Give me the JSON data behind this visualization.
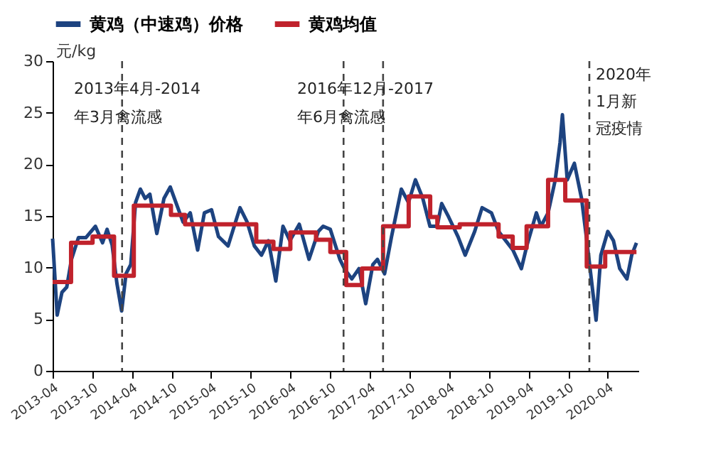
{
  "chart_data": {
    "type": "line",
    "ylabel": "元/kg",
    "xlim": [
      "2013-04-01",
      "2020-08-20"
    ],
    "xticks": [
      "2013-04",
      "2013-10",
      "2014-04",
      "2014-10",
      "2015-04",
      "2015-10",
      "2016-04",
      "2016-10",
      "2017-04",
      "2017-10",
      "2018-04",
      "2018-10",
      "2019-04",
      "2019-10",
      "2020-04"
    ],
    "ylim": [
      0,
      30
    ],
    "yticks": [
      0,
      5,
      10,
      15,
      20,
      25,
      30
    ],
    "grid": false,
    "legend": "top",
    "marker": "none",
    "line_style": "solid",
    "series": [
      {
        "name": "黄鸡（中速鸡）价格",
        "color": "#1d4380",
        "x": [
          "2013-04-01",
          "2013-04-22",
          "2013-05-14",
          "2013-06-05",
          "2013-06-27",
          "2013-07-29",
          "2013-09-01",
          "2013-10-15",
          "2013-11-17",
          "2013-12-08",
          "2013-12-31",
          "2014-01-22",
          "2014-02-13",
          "2014-03-05",
          "2014-03-27",
          "2014-04-18",
          "2014-05-10",
          "2014-06-01",
          "2014-06-23",
          "2014-07-25",
          "2014-08-27",
          "2014-09-25",
          "2014-10-21",
          "2014-11-23",
          "2014-12-26",
          "2015-01-29",
          "2015-03-01",
          "2015-04-03",
          "2015-05-05",
          "2015-06-18",
          "2015-08-12",
          "2015-09-14",
          "2015-10-17",
          "2015-11-19",
          "2015-12-21",
          "2016-01-24",
          "2016-02-26",
          "2016-03-29",
          "2016-05-11",
          "2016-06-25",
          "2016-08-07",
          "2016-08-29",
          "2016-10-01",
          "2016-11-14",
          "2016-12-05",
          "2017-01-08",
          "2017-02-10",
          "2017-03-13",
          "2017-04-15",
          "2017-05-06",
          "2017-06-08",
          "2017-07-10",
          "2017-08-24",
          "2017-09-26",
          "2017-10-28",
          "2017-12-01",
          "2018-01-03",
          "2018-02-05",
          "2018-02-26",
          "2018-03-30",
          "2018-05-12",
          "2018-06-14",
          "2018-07-28",
          "2018-08-31",
          "2018-10-13",
          "2018-11-15",
          "2018-12-18",
          "2019-01-20",
          "2019-02-28",
          "2019-03-25",
          "2019-05-08",
          "2019-05-29",
          "2019-07-01",
          "2019-08-03",
          "2019-08-25",
          "2019-09-05",
          "2019-09-27",
          "2019-10-30",
          "2019-12-02",
          "2019-12-24",
          "2020-01-16",
          "2020-02-07",
          "2020-02-29",
          "2020-04-01",
          "2020-04-27",
          "2020-05-26",
          "2020-06-28",
          "2020-07-20",
          "2020-08-11"
        ],
        "values": [
          12.8,
          5.4,
          7.6,
          8.1,
          10.8,
          12.9,
          12.9,
          14.0,
          12.4,
          13.7,
          12.2,
          8.5,
          5.8,
          9.4,
          10.3,
          16.3,
          17.6,
          16.7,
          17.1,
          13.3,
          16.7,
          17.8,
          16.3,
          14.4,
          15.3,
          11.7,
          15.3,
          15.6,
          13.0,
          12.1,
          15.8,
          14.4,
          12.1,
          11.2,
          12.6,
          8.7,
          14.0,
          12.6,
          14.2,
          10.8,
          13.5,
          14.0,
          13.7,
          10.8,
          9.9,
          8.9,
          9.9,
          6.5,
          10.3,
          10.8,
          9.4,
          13.0,
          17.6,
          16.3,
          18.5,
          16.7,
          14.0,
          14.0,
          16.2,
          14.9,
          13.0,
          11.2,
          13.5,
          15.8,
          15.3,
          13.5,
          12.6,
          11.7,
          9.9,
          12.1,
          15.3,
          14.0,
          15.3,
          18.5,
          22.1,
          24.8,
          18.5,
          20.1,
          16.7,
          13.0,
          8.9,
          4.9,
          11.2,
          13.5,
          12.6,
          9.9,
          8.9,
          11.2,
          12.4
        ]
      },
      {
        "name": "黄鸡均值",
        "color": "#c0222c",
        "type": "step",
        "x": [
          "2013-04-01",
          "2013-06-25",
          "2013-10-02",
          "2014-01-09",
          "2014-04-10",
          "2014-09-28",
          "2014-12-02",
          "2015-10-26",
          "2016-01-13",
          "2016-03-31",
          "2016-07-27",
          "2016-10-01",
          "2016-12-13",
          "2017-02-24",
          "2017-06-01",
          "2017-09-27",
          "2018-01-04",
          "2018-02-06",
          "2018-05-20",
          "2018-11-15",
          "2019-01-19",
          "2019-03-24",
          "2019-07-01",
          "2019-09-18",
          "2019-12-26",
          "2020-03-20",
          "2020-08-11"
        ],
        "values": [
          8.6,
          12.4,
          13.0,
          9.2,
          16.0,
          15.1,
          14.2,
          12.5,
          11.8,
          13.4,
          12.7,
          11.5,
          8.3,
          9.9,
          14.0,
          16.9,
          14.9,
          13.9,
          14.2,
          13.0,
          11.9,
          14.0,
          18.5,
          16.5,
          10.1,
          11.5,
          11.5
        ]
      }
    ],
    "ref_lines": [
      {
        "axis": "x",
        "value": "2014-02-15",
        "label": null,
        "color": "#444444",
        "line_style": "dashed"
      },
      {
        "axis": "x",
        "value": "2016-12-01",
        "label": null,
        "color": "#444444",
        "line_style": "dashed"
      },
      {
        "axis": "x",
        "value": "2017-06-01",
        "label": null,
        "color": "#444444",
        "line_style": "dashed"
      },
      {
        "axis": "x",
        "value": "2020-01-07",
        "label": null,
        "color": "#444444",
        "line_style": "dashed"
      }
    ],
    "annotations": [
      "2013年4月-2014",
      "年3月禽流感",
      "2016年12月-2017",
      "年6月禽流感",
      "2020年",
      "1月新",
      "冠疫情"
    ]
  }
}
